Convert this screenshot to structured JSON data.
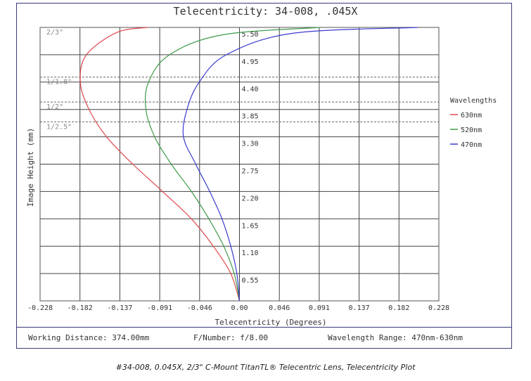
{
  "chart_data": {
    "type": "line",
    "title": "Telecentricity: 34-008, .045X",
    "xlabel": "Telecentricity (Degrees)",
    "ylabel": "Image Height (mm)",
    "xlim": [
      -0.228,
      0.228
    ],
    "ylim": [
      0,
      5.5
    ],
    "x_ticks": [
      "-0.228",
      "-0.182",
      "-0.137",
      "-0.091",
      "-0.046",
      "0.00",
      "0.046",
      "0.091",
      "0.137",
      "0.182",
      "0.228"
    ],
    "y_ticks": [
      "0.55",
      "1.10",
      "1.65",
      "2.20",
      "2.75",
      "3.30",
      "3.85",
      "4.40",
      "4.95",
      "5.50"
    ],
    "sensor_markers": [
      {
        "label": "2/3\"",
        "y": 5.5
      },
      {
        "label": "1/1.8\"",
        "y": 4.5
      },
      {
        "label": "1/2\"",
        "y": 4.0
      },
      {
        "label": "1/2.5\"",
        "y": 3.6
      }
    ],
    "legend_title": "Wavelengths",
    "legend_position": "right",
    "grid": true,
    "series": [
      {
        "name": "630nm",
        "color": "#e0474c",
        "points": [
          [
            0,
            0
          ],
          [
            -0.01,
            0.55
          ],
          [
            -0.03,
            1.1
          ],
          [
            -0.055,
            1.65
          ],
          [
            -0.088,
            2.2
          ],
          [
            -0.122,
            2.75
          ],
          [
            -0.152,
            3.3
          ],
          [
            -0.172,
            3.85
          ],
          [
            -0.182,
            4.4
          ],
          [
            -0.175,
            4.95
          ],
          [
            -0.14,
            5.4
          ],
          [
            -0.105,
            5.5
          ]
        ]
      },
      {
        "name": "520nm",
        "color": "#3f9a48",
        "points": [
          [
            0,
            0
          ],
          [
            -0.006,
            0.55
          ],
          [
            -0.018,
            1.1
          ],
          [
            -0.035,
            1.65
          ],
          [
            -0.055,
            2.2
          ],
          [
            -0.078,
            2.75
          ],
          [
            -0.097,
            3.3
          ],
          [
            -0.107,
            3.85
          ],
          [
            -0.104,
            4.4
          ],
          [
            -0.08,
            4.95
          ],
          [
            -0.02,
            5.35
          ],
          [
            0.092,
            5.5
          ]
        ]
      },
      {
        "name": "470nm",
        "color": "#3b3bd1",
        "points": [
          [
            0,
            0
          ],
          [
            -0.003,
            0.55
          ],
          [
            -0.01,
            1.1
          ],
          [
            -0.02,
            1.65
          ],
          [
            -0.034,
            2.2
          ],
          [
            -0.05,
            2.75
          ],
          [
            -0.064,
            3.3
          ],
          [
            -0.06,
            3.85
          ],
          [
            -0.046,
            4.4
          ],
          [
            -0.015,
            4.95
          ],
          [
            0.06,
            5.38
          ],
          [
            0.204,
            5.5
          ]
        ]
      }
    ]
  },
  "footer": {
    "working_distance": "Working Distance: 374.00mm",
    "f_number": "F/Number: f/8.00",
    "wavelength_range": "Wavelength Range: 470nm-630nm"
  },
  "caption": "#34-008, 0.045X, 2/3\" C-Mount TitanTL® Telecentric Lens, Telecentricity Plot"
}
